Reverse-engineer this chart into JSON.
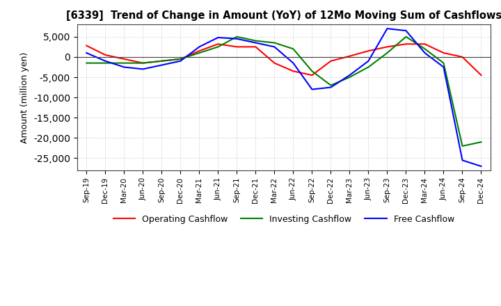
{
  "title": "[6339]  Trend of Change in Amount (YoY) of 12Mo Moving Sum of Cashflows",
  "ylabel": "Amount (million yen)",
  "ylim": [
    -28000,
    8000
  ],
  "yticks": [
    5000,
    0,
    -5000,
    -10000,
    -15000,
    -20000,
    -25000
  ],
  "x_labels": [
    "Sep-19",
    "Dec-19",
    "Mar-20",
    "Jun-20",
    "Sep-20",
    "Dec-20",
    "Mar-21",
    "Jun-21",
    "Sep-21",
    "Dec-21",
    "Mar-22",
    "Jun-22",
    "Sep-22",
    "Dec-22",
    "Mar-23",
    "Jun-23",
    "Sep-23",
    "Dec-23",
    "Mar-24",
    "Jun-24",
    "Sep-24",
    "Dec-24"
  ],
  "operating": [
    2800,
    500,
    -500,
    -1500,
    -1000,
    -500,
    1500,
    3200,
    2500,
    2500,
    -1500,
    -3500,
    -4500,
    -1000,
    200,
    1500,
    2500,
    3200,
    3200,
    1000,
    0,
    -4500
  ],
  "investing": [
    -1500,
    -1500,
    -1500,
    -1500,
    -1000,
    -500,
    1000,
    2500,
    5000,
    4000,
    3500,
    2000,
    -3500,
    -7000,
    -5000,
    -2500,
    1000,
    5000,
    2000,
    -1500,
    -22000,
    -21000
  ],
  "free": [
    1000,
    -1000,
    -2500,
    -3000,
    -2000,
    -1000,
    2500,
    4800,
    4500,
    3500,
    2500,
    -1500,
    -8000,
    -7500,
    -4500,
    -1000,
    7000,
    6500,
    1000,
    -2500,
    -25500,
    -27000
  ],
  "colors": {
    "operating": "#ff0000",
    "investing": "#008000",
    "free": "#0000ff"
  },
  "background": "#ffffff",
  "grid_color": "#b0b0b0"
}
